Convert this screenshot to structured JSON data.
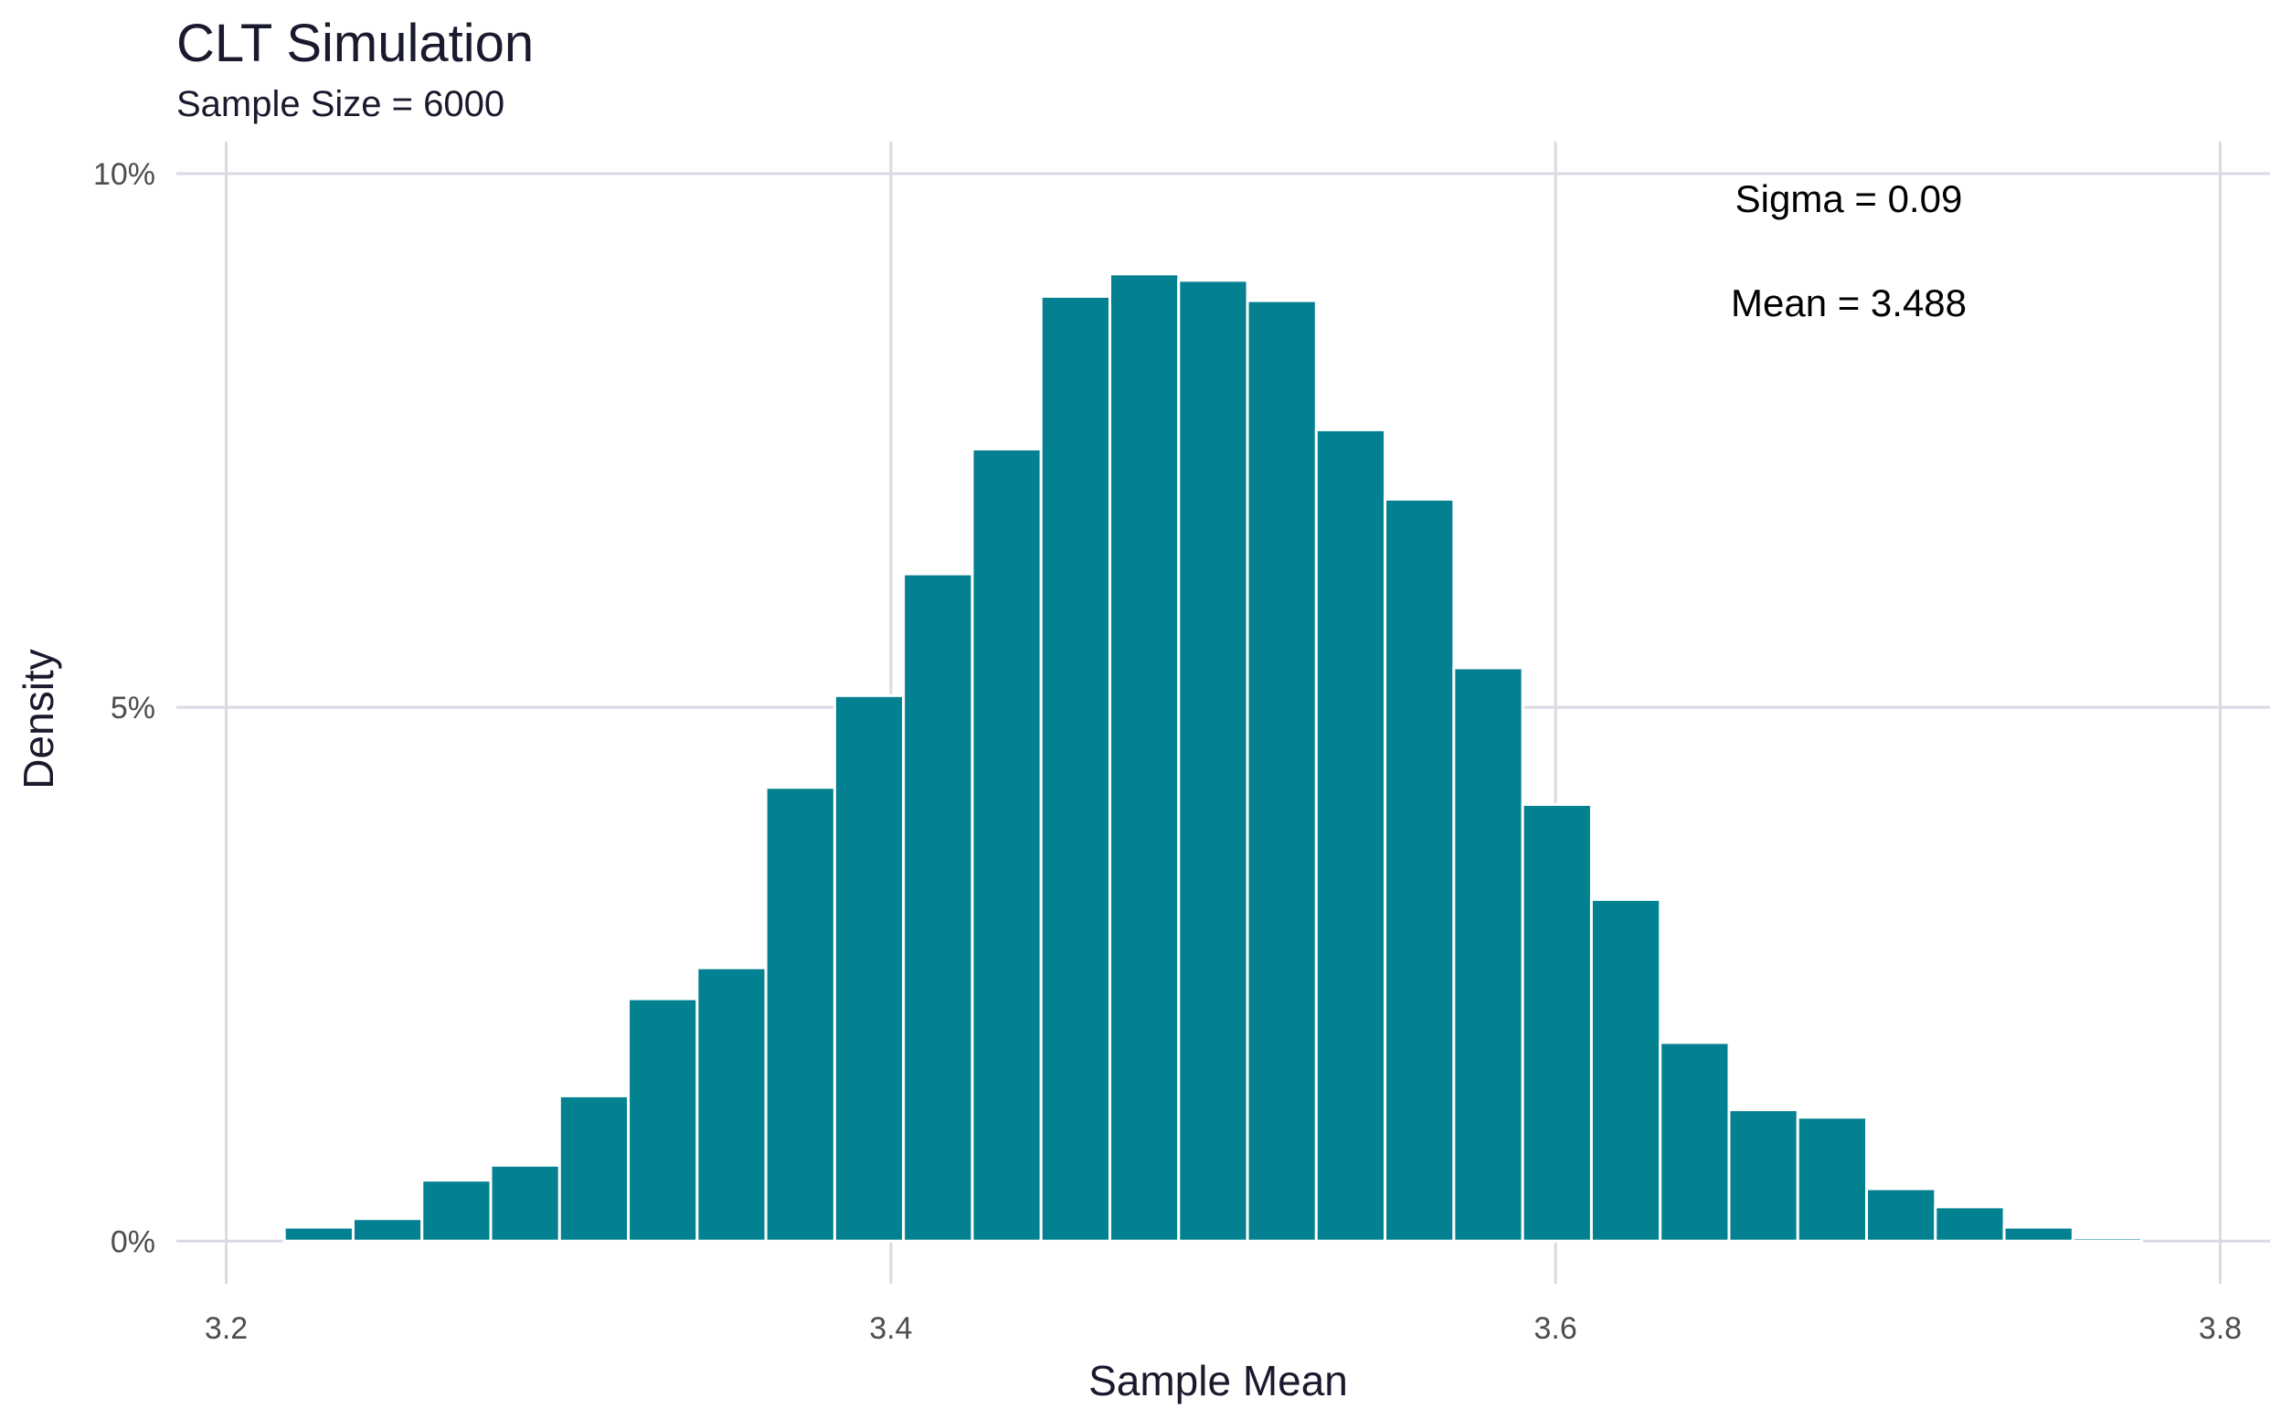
{
  "chart_data": {
    "type": "bar",
    "title": "CLT Simulation",
    "subtitle": "Sample Size = 6000",
    "xlabel": "Sample Mean",
    "ylabel": "Density",
    "xlim": [
      3.185,
      3.815
    ],
    "ylim": [
      -0.004,
      0.103
    ],
    "x_ticks": [
      3.2,
      3.4,
      3.6,
      3.8
    ],
    "x_tick_labels": [
      "3.2",
      "3.4",
      "3.6",
      "3.8"
    ],
    "y_ticks": [
      0,
      0.05,
      0.1
    ],
    "y_tick_labels": [
      "0%",
      "5%",
      "10%"
    ],
    "bin_start": 3.2175,
    "bin_width": 0.0207,
    "values": [
      0.0013,
      0.0021,
      0.0057,
      0.0071,
      0.0136,
      0.0227,
      0.0256,
      0.0425,
      0.0511,
      0.0625,
      0.0742,
      0.0885,
      0.0906,
      0.09,
      0.0881,
      0.076,
      0.0695,
      0.0537,
      0.0409,
      0.032,
      0.0186,
      0.0123,
      0.0116,
      0.0049,
      0.0032,
      0.0013,
      0.0003
    ],
    "bar_color": "#048190",
    "grid": true,
    "annotations": [
      {
        "text": "Sigma =  0.09"
      },
      {
        "text": "Mean =  3.488"
      }
    ]
  }
}
